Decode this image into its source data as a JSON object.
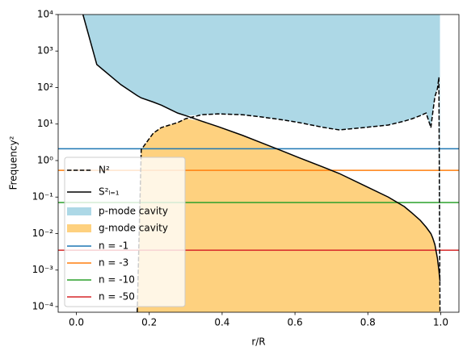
{
  "chart_data": {
    "type": "line",
    "x_label": "r/R",
    "y_label": "Frequency²",
    "log_y": true,
    "xlim": [
      -0.05,
      1.05
    ],
    "xticks": [
      {
        "value": 0,
        "label": "0.0"
      },
      0.2,
      0.4,
      0.6,
      0.8,
      {
        "value": 1,
        "label": "1.0"
      }
    ],
    "ylim": [
      7e-05,
      10000
    ],
    "yticks": [
      {
        "value": 0.0001,
        "label": "10⁻⁴"
      },
      {
        "value": 0.001,
        "label": "10⁻³"
      },
      {
        "value": 0.01,
        "label": "10⁻²"
      },
      {
        "value": 0.1,
        "label": "10⁻¹"
      },
      {
        "value": 1,
        "label": "10⁰"
      },
      {
        "value": 10,
        "label": "10¹"
      },
      {
        "value": 100,
        "label": "10²"
      },
      {
        "value": 1000,
        "label": "10³"
      },
      {
        "value": 10000,
        "label": "10⁴"
      }
    ],
    "x": [
      0.018,
      0.056,
      0.122,
      0.167,
      0.178,
      0.211,
      0.233,
      0.278,
      0.3,
      0.344,
      0.389,
      0.456,
      0.5,
      0.567,
      0.611,
      0.678,
      0.722,
      0.789,
      0.856,
      0.9,
      0.922,
      0.944,
      0.96,
      0.973,
      0.978,
      0.984,
      0.991,
      0.995,
      0.998
    ],
    "series": [
      {
        "name": "N²",
        "color": "#000000",
        "dash": true,
        "values": [
          null,
          null,
          null,
          7e-05,
          2,
          5.6,
          8,
          11,
          14,
          18,
          19,
          18,
          16,
          13,
          11,
          8.1,
          6.9,
          8,
          9.4,
          12,
          14,
          17,
          20,
          8,
          20,
          56,
          93,
          190,
          7e-05
        ]
      },
      {
        "name": "S²ₗ₌₁",
        "color": "#000000",
        "dash": false,
        "values": [
          10000,
          427,
          120,
          60,
          52,
          40,
          33,
          20,
          17,
          12,
          8.5,
          4.9,
          3.3,
          1.8,
          1.2,
          0.66,
          0.44,
          0.21,
          0.1,
          0.055,
          0.036,
          0.023,
          0.015,
          0.01,
          0.0076,
          0.005,
          0.0021,
          0.001,
          0.0005
        ]
      }
    ],
    "fills": [
      {
        "name": "p-mode cavity",
        "color": "#add8e6"
      },
      {
        "name": "g-mode cavity",
        "color": "#fed17f"
      }
    ],
    "hlines": [
      {
        "name": "n = -1",
        "color": "#1f77b4",
        "value": 2.1
      },
      {
        "name": "n = -3",
        "color": "#ff7f0e",
        "value": 0.54
      },
      {
        "name": "n = -10",
        "color": "#2ca02c",
        "value": 0.071
      },
      {
        "name": "n = -50",
        "color": "#d62728",
        "value": 0.0035
      }
    ],
    "legend": "lower left"
  }
}
